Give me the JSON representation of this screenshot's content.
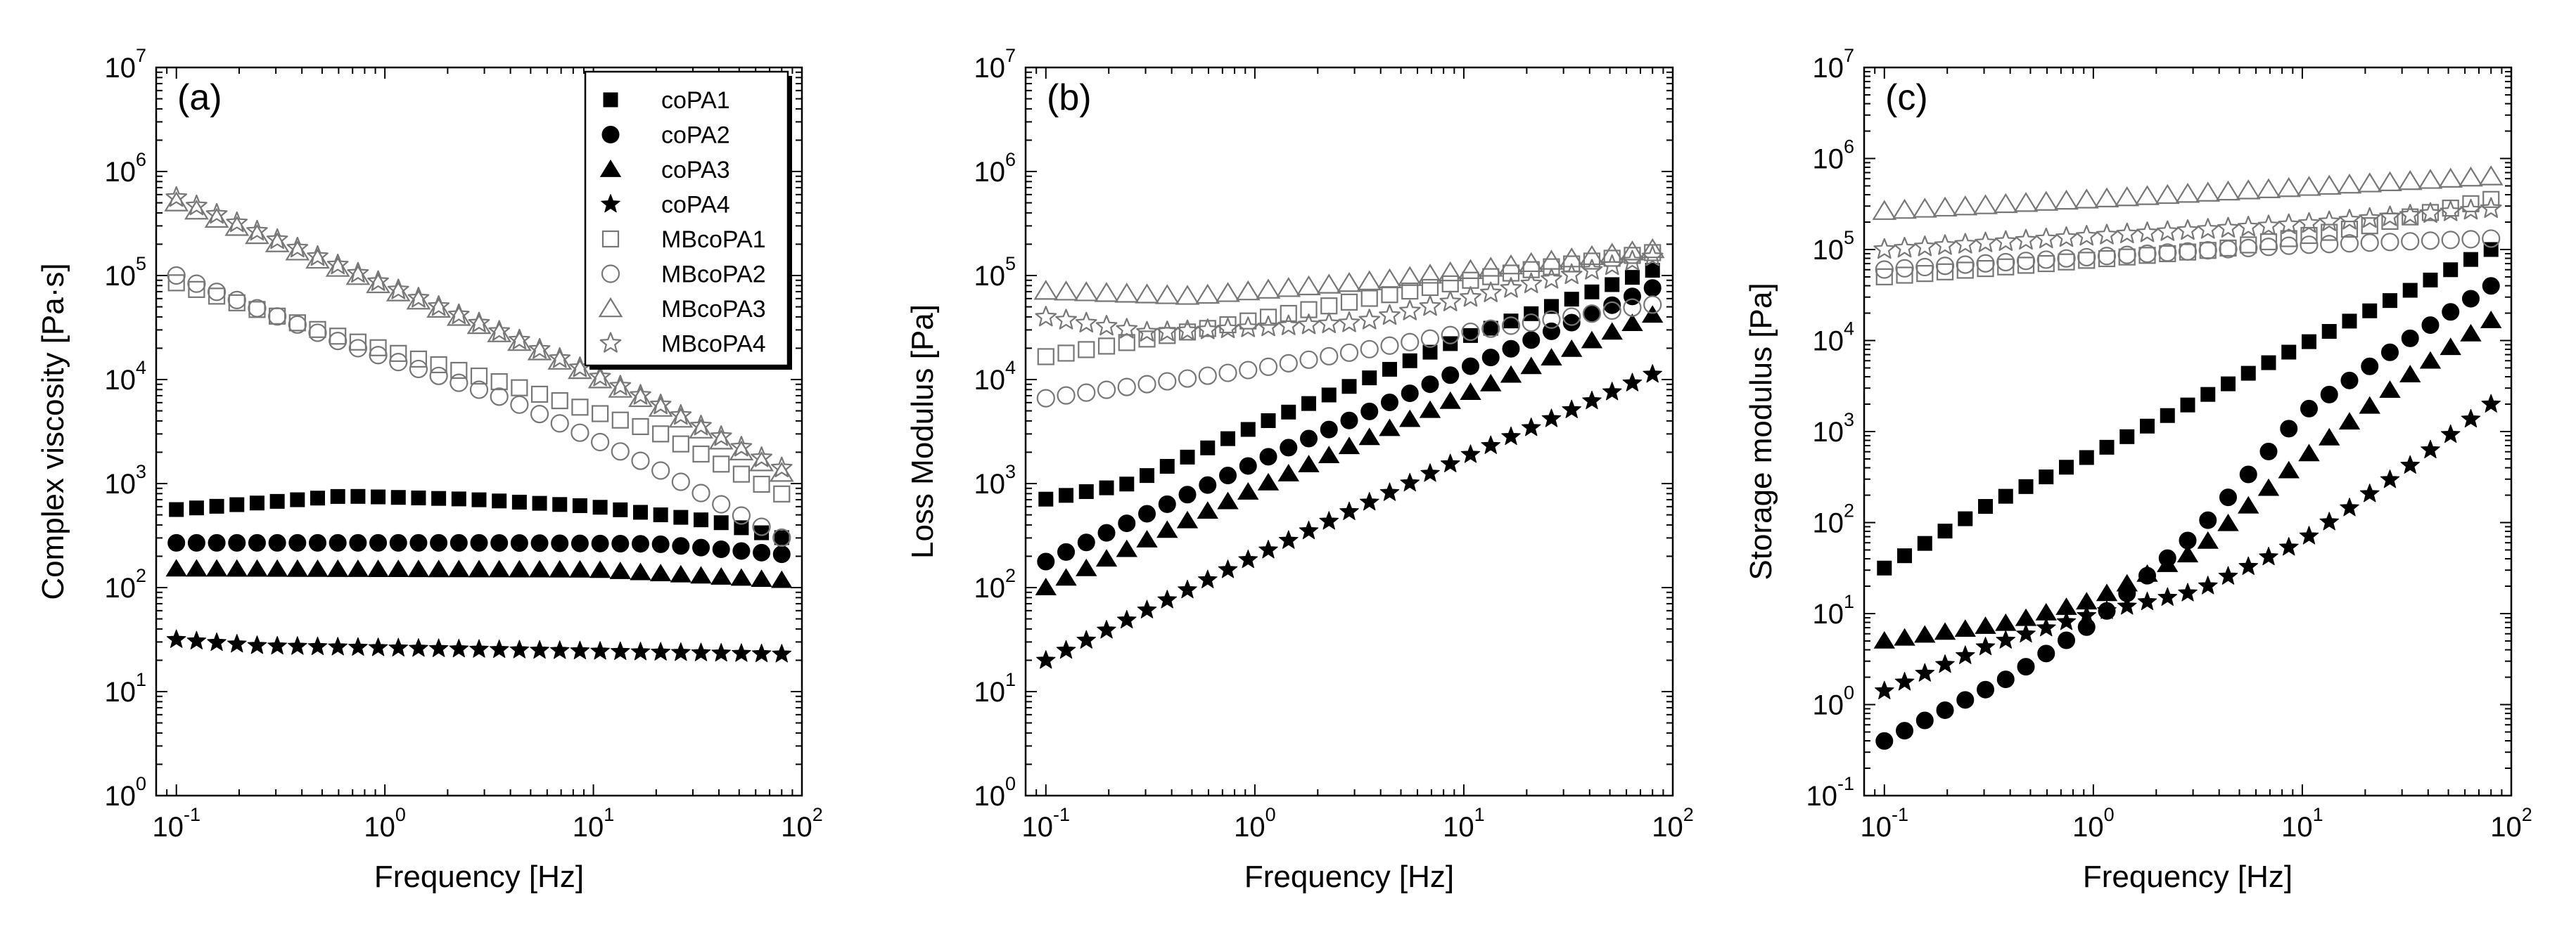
{
  "chart_data": [
    {
      "type": "scatter",
      "panel_label": "(a)",
      "xscale": "log",
      "yscale": "log",
      "xlabel": "Frequency [Hz]",
      "ylabel": "Complex viscosity [Pa·s]",
      "xlim": [
        0.08,
        100
      ],
      "ylim": [
        1,
        10000000
      ],
      "x_ticks": [
        0.1,
        1,
        10,
        100
      ],
      "x_tick_labels": [
        {
          "base": "10",
          "exp": "-1"
        },
        {
          "base": "10",
          "exp": "0"
        },
        {
          "base": "10",
          "exp": "1"
        },
        {
          "base": "10",
          "exp": "2"
        }
      ],
      "y_ticks": [
        1,
        10,
        100,
        1000,
        10000,
        100000,
        1000000,
        10000000
      ],
      "y_tick_labels": [
        {
          "base": "10",
          "exp": "0"
        },
        {
          "base": "10",
          "exp": "1"
        },
        {
          "base": "10",
          "exp": "2"
        },
        {
          "base": "10",
          "exp": "3"
        },
        {
          "base": "10",
          "exp": "4"
        },
        {
          "base": "10",
          "exp": "5"
        },
        {
          "base": "10",
          "exp": "6"
        },
        {
          "base": "10",
          "exp": "7"
        }
      ],
      "legend": {
        "placement": "top-right",
        "entries": [
          "coPA1",
          "coPA2",
          "coPA3",
          "coPA4",
          "MBcoPA1",
          "MBcoPA2",
          "MBcoPA3",
          "MBcoPA4"
        ]
      },
      "series": [
        {
          "name": "coPA1",
          "marker": "square",
          "filled": true,
          "x_range": [
            0.1,
            80
          ],
          "points": 31,
          "log_anchors": [
            [
              -1.0,
              2.75
            ],
            [
              -0.2,
              2.88
            ],
            [
              0.4,
              2.85
            ],
            [
              1.0,
              2.78
            ],
            [
              1.6,
              2.63
            ],
            [
              1.9,
              2.48
            ]
          ]
        },
        {
          "name": "coPA2",
          "marker": "circle",
          "filled": true,
          "x_range": [
            0.1,
            80
          ],
          "points": 31,
          "log_anchors": [
            [
              -1.0,
              2.43
            ],
            [
              0.5,
              2.43
            ],
            [
              1.3,
              2.42
            ],
            [
              1.9,
              2.32
            ]
          ]
        },
        {
          "name": "coPA3",
          "marker": "triangle",
          "filled": true,
          "x_range": [
            0.1,
            80
          ],
          "points": 31,
          "log_anchors": [
            [
              -1.0,
              2.18
            ],
            [
              1.0,
              2.17
            ],
            [
              1.9,
              2.07
            ]
          ]
        },
        {
          "name": "coPA4",
          "marker": "star",
          "filled": true,
          "x_range": [
            0.1,
            80
          ],
          "points": 31,
          "log_anchors": [
            [
              -1.0,
              1.5
            ],
            [
              -0.6,
              1.44
            ],
            [
              1.9,
              1.36
            ]
          ]
        },
        {
          "name": "MBcoPA1",
          "marker": "square",
          "filled": false,
          "x_range": [
            0.1,
            80
          ],
          "points": 31,
          "log_anchors": [
            [
              -1.0,
              4.93
            ],
            [
              -0.2,
              4.4
            ],
            [
              0.6,
              3.95
            ],
            [
              1.3,
              3.5
            ],
            [
              1.9,
              2.9
            ]
          ]
        },
        {
          "name": "MBcoPA2",
          "marker": "circle",
          "filled": false,
          "x_range": [
            0.1,
            80
          ],
          "points": 31,
          "log_anchors": [
            [
              -1.0,
              5.0
            ],
            [
              -0.2,
              4.35
            ],
            [
              0.6,
              3.8
            ],
            [
              1.3,
              3.15
            ],
            [
              1.9,
              2.48
            ]
          ]
        },
        {
          "name": "MBcoPA3",
          "marker": "triangle",
          "filled": false,
          "x_range": [
            0.1,
            80
          ],
          "points": 31,
          "log_anchors": [
            [
              -1.0,
              5.7
            ],
            [
              -0.2,
              5.05
            ],
            [
              0.6,
              4.4
            ],
            [
              1.3,
              3.75
            ],
            [
              1.9,
              3.1
            ]
          ]
        },
        {
          "name": "MBcoPA4",
          "marker": "star",
          "filled": false,
          "x_range": [
            0.1,
            80
          ],
          "points": 31,
          "log_anchors": [
            [
              -1.0,
              5.75
            ],
            [
              -0.2,
              5.08
            ],
            [
              0.6,
              4.42
            ],
            [
              1.3,
              3.78
            ],
            [
              1.9,
              3.15
            ]
          ]
        }
      ]
    },
    {
      "type": "scatter",
      "panel_label": "(b)",
      "xscale": "log",
      "yscale": "log",
      "xlabel": "Frequency [Hz]",
      "ylabel": "Loss Modulus [Pa]",
      "xlim": [
        0.08,
        100
      ],
      "ylim": [
        1,
        10000000
      ],
      "x_ticks": [
        0.1,
        1,
        10,
        100
      ],
      "x_tick_labels": [
        {
          "base": "10",
          "exp": "-1"
        },
        {
          "base": "10",
          "exp": "0"
        },
        {
          "base": "10",
          "exp": "1"
        },
        {
          "base": "10",
          "exp": "2"
        }
      ],
      "y_ticks": [
        1,
        10,
        100,
        1000,
        10000,
        100000,
        1000000,
        10000000
      ],
      "y_tick_labels": [
        {
          "base": "10",
          "exp": "0"
        },
        {
          "base": "10",
          "exp": "1"
        },
        {
          "base": "10",
          "exp": "2"
        },
        {
          "base": "10",
          "exp": "3"
        },
        {
          "base": "10",
          "exp": "4"
        },
        {
          "base": "10",
          "exp": "5"
        },
        {
          "base": "10",
          "exp": "6"
        },
        {
          "base": "10",
          "exp": "7"
        }
      ],
      "series": [
        {
          "name": "coPA1",
          "marker": "square",
          "filled": true,
          "x_range": [
            0.1,
            80
          ],
          "points": 31,
          "log_anchors": [
            [
              -1.0,
              2.85
            ],
            [
              -0.6,
              3.0
            ],
            [
              0.0,
              3.55
            ],
            [
              1.0,
              4.4
            ],
            [
              1.9,
              5.05
            ]
          ]
        },
        {
          "name": "coPA2",
          "marker": "circle",
          "filled": true,
          "x_range": [
            0.1,
            80
          ],
          "points": 31,
          "log_anchors": [
            [
              -1.0,
              2.25
            ],
            [
              0.0,
              3.2
            ],
            [
              1.0,
              4.1
            ],
            [
              1.9,
              4.88
            ]
          ]
        },
        {
          "name": "coPA3",
          "marker": "triangle",
          "filled": true,
          "x_range": [
            0.1,
            80
          ],
          "points": 31,
          "log_anchors": [
            [
              -1.0,
              2.0
            ],
            [
              0.0,
              2.95
            ],
            [
              1.0,
              3.85
            ],
            [
              1.9,
              4.62
            ]
          ]
        },
        {
          "name": "coPA4",
          "marker": "star",
          "filled": true,
          "x_range": [
            0.1,
            80
          ],
          "points": 31,
          "log_anchors": [
            [
              -1.0,
              1.3
            ],
            [
              0.0,
              2.3
            ],
            [
              1.0,
              3.25
            ],
            [
              1.9,
              4.05
            ]
          ]
        },
        {
          "name": "MBcoPA1",
          "marker": "square",
          "filled": false,
          "x_range": [
            0.1,
            80
          ],
          "points": 31,
          "log_anchors": [
            [
              -1.0,
              4.22
            ],
            [
              -0.2,
              4.5
            ],
            [
              0.6,
              4.8
            ],
            [
              1.3,
              5.05
            ],
            [
              1.9,
              5.22
            ]
          ]
        },
        {
          "name": "MBcoPA2",
          "marker": "circle",
          "filled": false,
          "x_range": [
            0.1,
            80
          ],
          "points": 31,
          "log_anchors": [
            [
              -1.0,
              3.82
            ],
            [
              0.0,
              4.1
            ],
            [
              1.0,
              4.45
            ],
            [
              1.9,
              4.72
            ]
          ]
        },
        {
          "name": "MBcoPA3",
          "marker": "triangle",
          "filled": false,
          "x_range": [
            0.1,
            80
          ],
          "points": 31,
          "log_anchors": [
            [
              -1.0,
              4.85
            ],
            [
              -0.3,
              4.8
            ],
            [
              0.6,
              4.95
            ],
            [
              1.9,
              5.25
            ]
          ]
        },
        {
          "name": "MBcoPA4",
          "marker": "star",
          "filled": false,
          "x_range": [
            0.1,
            80
          ],
          "points": 31,
          "log_anchors": [
            [
              -1.0,
              4.6
            ],
            [
              -0.5,
              4.45
            ],
            [
              0.5,
              4.55
            ],
            [
              1.9,
              5.18
            ]
          ]
        }
      ]
    },
    {
      "type": "scatter",
      "panel_label": "(c)",
      "xscale": "log",
      "yscale": "log",
      "xlabel": "Frequency [Hz]",
      "ylabel": "Storage modulus [Pa]",
      "xlim": [
        0.08,
        100
      ],
      "ylim": [
        0.1,
        10000000
      ],
      "x_ticks": [
        0.1,
        1,
        10,
        100
      ],
      "x_tick_labels": [
        {
          "base": "10",
          "exp": "-1"
        },
        {
          "base": "10",
          "exp": "0"
        },
        {
          "base": "10",
          "exp": "1"
        },
        {
          "base": "10",
          "exp": "2"
        }
      ],
      "y_ticks": [
        0.1,
        1,
        10,
        100,
        1000,
        10000,
        100000,
        1000000,
        10000000
      ],
      "y_tick_labels": [
        {
          "base": "10",
          "exp": "-1"
        },
        {
          "base": "10",
          "exp": "0"
        },
        {
          "base": "10",
          "exp": "1"
        },
        {
          "base": "10",
          "exp": "2"
        },
        {
          "base": "10",
          "exp": "3"
        },
        {
          "base": "10",
          "exp": "4"
        },
        {
          "base": "10",
          "exp": "5"
        },
        {
          "base": "10",
          "exp": "6"
        },
        {
          "base": "10",
          "exp": "7"
        }
      ],
      "series": [
        {
          "name": "coPA1",
          "marker": "square",
          "filled": true,
          "x_range": [
            0.1,
            80
          ],
          "points": 31,
          "log_anchors": [
            [
              -1.0,
              1.5
            ],
            [
              -0.5,
              2.2
            ],
            [
              0.0,
              2.75
            ],
            [
              1.0,
              3.95
            ],
            [
              1.9,
              5.0
            ]
          ]
        },
        {
          "name": "coPA2",
          "marker": "circle",
          "filled": true,
          "x_range": [
            0.1,
            80
          ],
          "points": 31,
          "log_anchors": [
            [
              -1.0,
              -0.4
            ],
            [
              -0.4,
              0.3
            ],
            [
              0.0,
              0.9
            ],
            [
              0.5,
              1.9
            ],
            [
              1.0,
              3.2
            ],
            [
              1.5,
              4.0
            ],
            [
              1.9,
              4.6
            ]
          ]
        },
        {
          "name": "coPA3",
          "marker": "triangle",
          "filled": true,
          "x_range": [
            0.1,
            80
          ],
          "points": 31,
          "log_anchors": [
            [
              -1.0,
              0.7
            ],
            [
              -0.4,
              0.9
            ],
            [
              0.0,
              1.15
            ],
            [
              0.5,
              1.7
            ],
            [
              1.0,
              2.7
            ],
            [
              1.5,
              3.6
            ],
            [
              1.9,
              4.22
            ]
          ]
        },
        {
          "name": "coPA4",
          "marker": "star",
          "filled": true,
          "x_range": [
            0.1,
            80
          ],
          "points": 31,
          "log_anchors": [
            [
              -1.0,
              0.15
            ],
            [
              -0.5,
              0.65
            ],
            [
              0.0,
              1.0
            ],
            [
              0.5,
              1.25
            ],
            [
              1.0,
              1.8
            ],
            [
              1.5,
              2.6
            ],
            [
              1.9,
              3.3
            ]
          ]
        },
        {
          "name": "MBcoPA1",
          "marker": "square",
          "filled": false,
          "x_range": [
            0.1,
            80
          ],
          "points": 31,
          "log_anchors": [
            [
              -1.0,
              4.7
            ],
            [
              -0.2,
              4.85
            ],
            [
              0.6,
              5.0
            ],
            [
              1.3,
              5.25
            ],
            [
              1.9,
              5.55
            ]
          ]
        },
        {
          "name": "MBcoPA2",
          "marker": "circle",
          "filled": false,
          "x_range": [
            0.1,
            80
          ],
          "points": 31,
          "log_anchors": [
            [
              -1.0,
              4.78
            ],
            [
              0.0,
              4.92
            ],
            [
              1.0,
              5.05
            ],
            [
              1.9,
              5.12
            ]
          ]
        },
        {
          "name": "MBcoPA3",
          "marker": "triangle",
          "filled": false,
          "x_range": [
            0.1,
            80
          ],
          "points": 31,
          "log_anchors": [
            [
              -1.0,
              5.42
            ],
            [
              0.0,
              5.55
            ],
            [
              1.0,
              5.68
            ],
            [
              1.9,
              5.8
            ]
          ]
        },
        {
          "name": "MBcoPA4",
          "marker": "star",
          "filled": false,
          "x_range": [
            0.1,
            80
          ],
          "points": 31,
          "log_anchors": [
            [
              -1.0,
              5.0
            ],
            [
              0.0,
              5.15
            ],
            [
              1.0,
              5.28
            ],
            [
              1.9,
              5.45
            ]
          ]
        }
      ]
    }
  ]
}
